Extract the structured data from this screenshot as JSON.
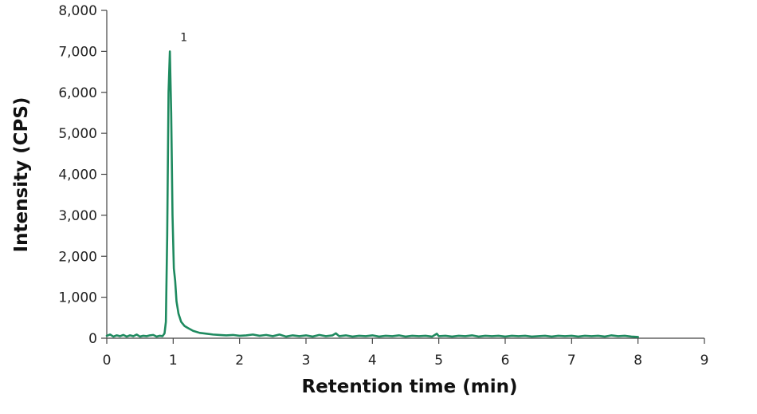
{
  "chart_data": {
    "type": "line",
    "title": "",
    "xlabel": "Retention time (min)",
    "ylabel": "Intensity (CPS)",
    "xlim": [
      0,
      9
    ],
    "ylim": [
      0,
      8000
    ],
    "x_ticks": [
      0,
      1,
      2,
      3,
      4,
      5,
      6,
      7,
      8,
      9
    ],
    "x_tick_labels": [
      "0",
      "1",
      "2",
      "3",
      "4",
      "5",
      "6",
      "7",
      "8",
      "9"
    ],
    "y_ticks": [
      0,
      1000,
      2000,
      3000,
      4000,
      5000,
      6000,
      7000,
      8000
    ],
    "y_tick_labels": [
      "0",
      "1,000",
      "2,000",
      "3,000",
      "4,000",
      "5,000",
      "6,000",
      "7,000",
      "8,000"
    ],
    "grid": false,
    "legend": "none",
    "line_color": "#1e8a5f",
    "annotations": [
      {
        "text": "1",
        "x": 1.16,
        "y": 7250
      }
    ],
    "series": [
      {
        "values": [
          [
            0.0,
            60
          ],
          [
            0.05,
            90
          ],
          [
            0.1,
            40
          ],
          [
            0.15,
            70
          ],
          [
            0.2,
            50
          ],
          [
            0.25,
            80
          ],
          [
            0.3,
            40
          ],
          [
            0.35,
            70
          ],
          [
            0.4,
            50
          ],
          [
            0.45,
            90
          ],
          [
            0.5,
            40
          ],
          [
            0.55,
            60
          ],
          [
            0.6,
            50
          ],
          [
            0.65,
            70
          ],
          [
            0.7,
            80
          ],
          [
            0.75,
            40
          ],
          [
            0.8,
            60
          ],
          [
            0.84,
            50
          ],
          [
            0.87,
            120
          ],
          [
            0.89,
            400
          ],
          [
            0.91,
            2500
          ],
          [
            0.93,
            6000
          ],
          [
            0.95,
            7000
          ],
          [
            0.97,
            5500
          ],
          [
            0.99,
            3000
          ],
          [
            1.01,
            1700
          ],
          [
            1.03,
            1400
          ],
          [
            1.05,
            900
          ],
          [
            1.08,
            600
          ],
          [
            1.12,
            400
          ],
          [
            1.17,
            300
          ],
          [
            1.22,
            250
          ],
          [
            1.3,
            180
          ],
          [
            1.4,
            130
          ],
          [
            1.5,
            110
          ],
          [
            1.6,
            90
          ],
          [
            1.7,
            80
          ],
          [
            1.8,
            70
          ],
          [
            1.9,
            80
          ],
          [
            2.0,
            60
          ],
          [
            2.1,
            70
          ],
          [
            2.2,
            90
          ],
          [
            2.3,
            60
          ],
          [
            2.4,
            80
          ],
          [
            2.5,
            50
          ],
          [
            2.6,
            90
          ],
          [
            2.7,
            40
          ],
          [
            2.8,
            70
          ],
          [
            2.9,
            50
          ],
          [
            3.0,
            70
          ],
          [
            3.1,
            40
          ],
          [
            3.2,
            80
          ],
          [
            3.3,
            50
          ],
          [
            3.4,
            70
          ],
          [
            3.45,
            120
          ],
          [
            3.5,
            50
          ],
          [
            3.6,
            70
          ],
          [
            3.7,
            40
          ],
          [
            3.8,
            60
          ],
          [
            3.9,
            50
          ],
          [
            4.0,
            70
          ],
          [
            4.1,
            40
          ],
          [
            4.2,
            60
          ],
          [
            4.3,
            50
          ],
          [
            4.4,
            70
          ],
          [
            4.5,
            40
          ],
          [
            4.6,
            60
          ],
          [
            4.7,
            50
          ],
          [
            4.8,
            60
          ],
          [
            4.9,
            40
          ],
          [
            4.97,
            110
          ],
          [
            5.0,
            50
          ],
          [
            5.1,
            60
          ],
          [
            5.2,
            40
          ],
          [
            5.3,
            60
          ],
          [
            5.4,
            50
          ],
          [
            5.5,
            70
          ],
          [
            5.6,
            40
          ],
          [
            5.7,
            60
          ],
          [
            5.8,
            50
          ],
          [
            5.9,
            60
          ],
          [
            6.0,
            40
          ],
          [
            6.1,
            60
          ],
          [
            6.2,
            50
          ],
          [
            6.3,
            60
          ],
          [
            6.4,
            40
          ],
          [
            6.5,
            50
          ],
          [
            6.6,
            60
          ],
          [
            6.7,
            40
          ],
          [
            6.8,
            60
          ],
          [
            6.9,
            50
          ],
          [
            7.0,
            60
          ],
          [
            7.1,
            40
          ],
          [
            7.2,
            60
          ],
          [
            7.3,
            50
          ],
          [
            7.4,
            60
          ],
          [
            7.5,
            40
          ],
          [
            7.6,
            70
          ],
          [
            7.7,
            50
          ],
          [
            7.8,
            60
          ],
          [
            7.9,
            40
          ],
          [
            8.0,
            30
          ]
        ]
      }
    ]
  }
}
